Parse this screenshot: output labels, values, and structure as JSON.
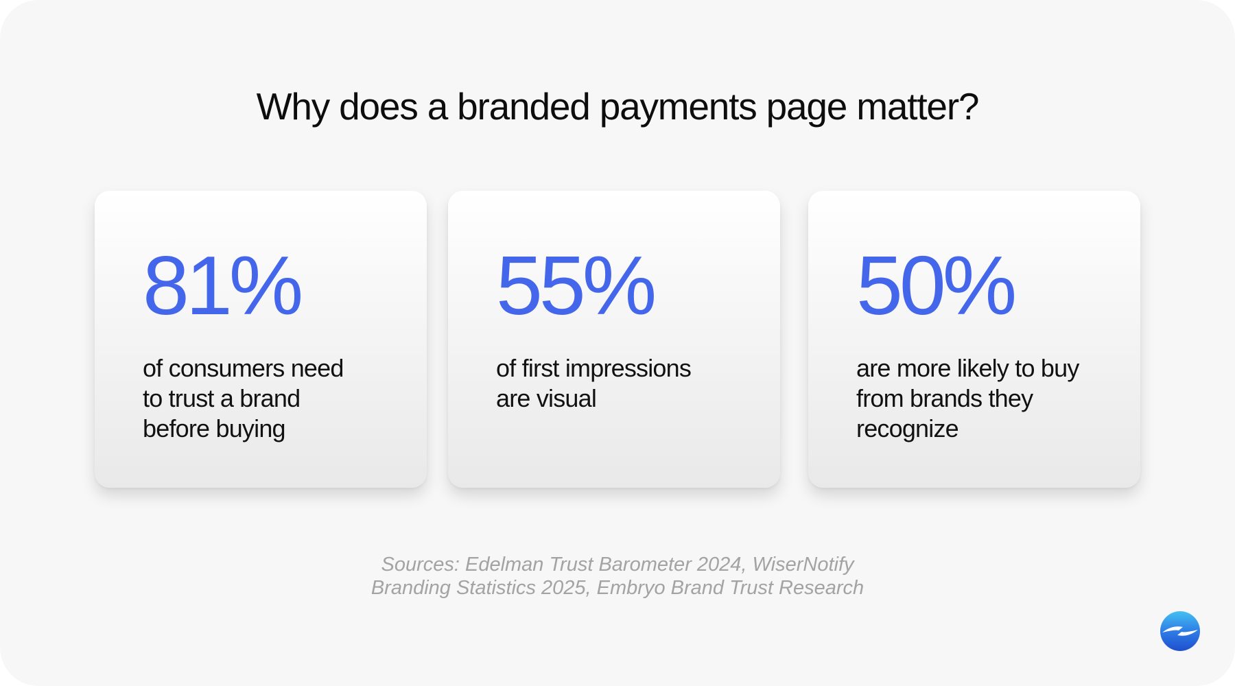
{
  "title": "Why does a branded payments page matter?",
  "stats": [
    {
      "value": "81%",
      "lines": [
        "of consumers need",
        "to trust a brand",
        "before buying"
      ]
    },
    {
      "value": "55%",
      "lines": [
        "of first impressions",
        "are visual"
      ]
    },
    {
      "value": "50%",
      "lines": [
        "are more likely to buy",
        "from brands they",
        "recognize"
      ]
    }
  ],
  "sources": {
    "line1": "Sources: Edelman Trust Barometer 2024, WiserNotify",
    "line2": "Branding Statistics 2025, Embryo Brand Trust Research"
  },
  "colors": {
    "accent": "#4466ea",
    "background": "#f7f7f7",
    "title_text": "#0d0d0d",
    "body_text": "#111111",
    "sources_text": "#a3a3a3"
  },
  "icons": {
    "logo": "brand-logo-icon"
  }
}
